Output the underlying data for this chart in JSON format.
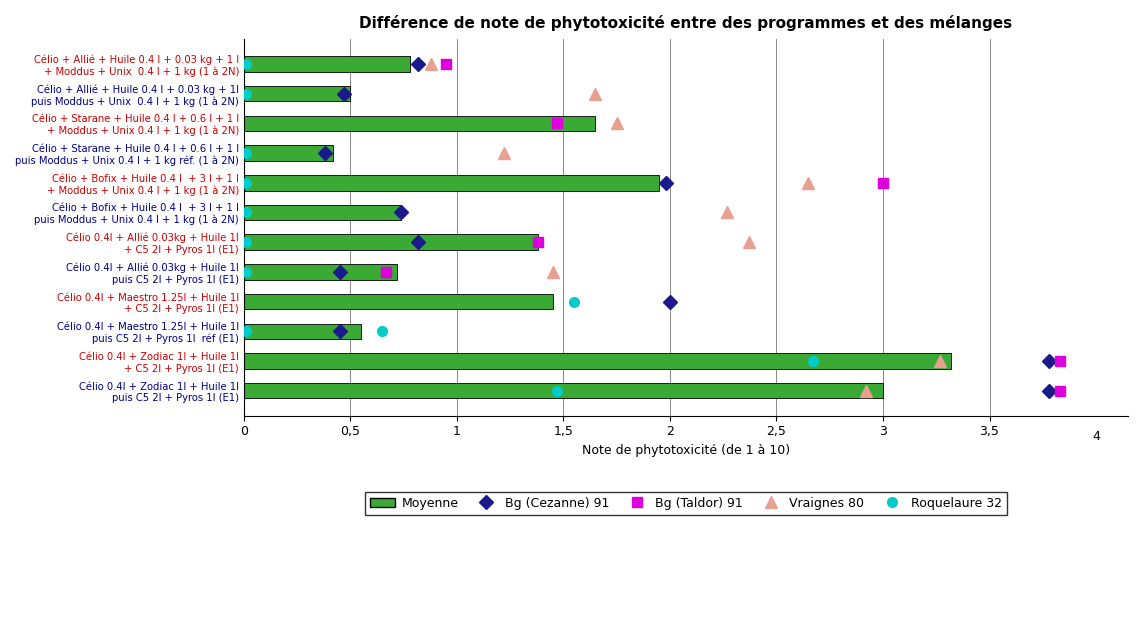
{
  "title": "Différence de note de phytotoxicité entre des programmes et des mélanges",
  "xlabel": "Note de phytotoxicité (de 1 à 10)",
  "bar_color": "#3aaa35",
  "bar_edge_color": "#000000",
  "background_color": "#ffffff",
  "xlim": [
    0,
    4.15
  ],
  "xticks": [
    0,
    0.5,
    1,
    1.5,
    2,
    2.5,
    3,
    3.5
  ],
  "xticklabels": [
    "0",
    "0,5",
    "1",
    "1,5",
    "2",
    "2,5",
    "3",
    "3,5"
  ],
  "categories": [
    [
      "Célio + Allié + Huile 0.4 l + 0.03 kg + 1 l",
      "+ Moddus + Unix  0.4 l + 1 kg (1 à 2N)"
    ],
    [
      "Célio + Allié + Huile 0.4 l + 0.03 kg + 1l",
      "puis Moddus + Unix  0.4 l + 1 kg (1 à 2N)"
    ],
    [
      "Célio + Starane + Huile 0.4 l + 0.6 l + 1 l",
      "+ Moddus + Unix 0.4 l + 1 kg (1 à 2N)"
    ],
    [
      "Célio + Starane + Huile 0.4 l + 0.6 l + 1 l",
      "puis Moddus + Unix 0.4 l + 1 kg réf. (1 à 2N)"
    ],
    [
      "Célio + Bofix + Huile 0.4 l  + 3 l + 1 l",
      "+ Moddus + Unix 0.4 l + 1 kg (1 à 2N)"
    ],
    [
      "Célio + Bofix + Huile 0.4 l  + 3 l + 1 l",
      "puis Moddus + Unix 0.4 l + 1 kg (1 à 2N)"
    ],
    [
      "Célio 0.4l + Allié 0.03kg + Huile 1l",
      "+ C5 2l + Pyros 1l (E1)"
    ],
    [
      "Célio 0.4l + Allié 0.03kg + Huile 1l",
      "puis C5 2l + Pyros 1l (E1)"
    ],
    [
      "Célio 0.4l + Maestro 1.25l + Huile 1l",
      "+ C5 2l + Pyros 1l (E1)"
    ],
    [
      "Célio 0.4l + Maestro 1.25l + Huile 1l",
      "puis C5 2l + Pyros 1l  réf (E1)"
    ],
    [
      "Célio 0.4l + Zodiac 1l + Huile 1l",
      "+ C5 2l + Pyros 1l (E1)"
    ],
    [
      "Célio 0.4l + Zodiac 1l + Huile 1l",
      "puis C5 2l + Pyros 1l (E1)"
    ]
  ],
  "cat_colors": [
    "#cc0000",
    "#00008b",
    "#cc0000",
    "#00008b",
    "#cc0000",
    "#00008b",
    "#cc0000",
    "#00008b",
    "#cc0000",
    "#00008b",
    "#cc0000",
    "#00008b"
  ],
  "bar_values": [
    0.78,
    0.5,
    1.65,
    0.42,
    1.95,
    0.74,
    1.38,
    0.72,
    1.45,
    0.55,
    3.32,
    3.0
  ],
  "bg_cezanne": [
    0.82,
    0.47,
    null,
    0.38,
    1.98,
    0.74,
    0.82,
    0.45,
    null,
    0.45,
    null,
    null
  ],
  "bg_taldor": [
    0.95,
    null,
    1.47,
    null,
    null,
    null,
    1.38,
    0.67,
    null,
    null,
    null,
    null
  ],
  "vraignes": [
    0.88,
    1.65,
    1.75,
    1.22,
    2.65,
    2.27,
    2.37,
    1.45,
    null,
    null,
    3.27,
    2.92
  ],
  "roquelaure": [
    null,
    null,
    null,
    null,
    null,
    null,
    null,
    null,
    1.55,
    0.65,
    2.67,
    1.47
  ],
  "marker_bg_cezanne_color": "#1a1a8c",
  "marker_bg_taldor_color": "#dd00dd",
  "marker_vraignes_color": "#e8a090",
  "marker_roquelaure_color": "#00cccc",
  "legend_labels": [
    "Moyenne",
    "Bg (Cezanne) 91",
    "Bg (Taldor) 91",
    "Vraignes 80",
    "Roquelaure 32"
  ],
  "cyan_at_bar_start": [
    true,
    true,
    false,
    true,
    true,
    true,
    true,
    true,
    false,
    true,
    false,
    false
  ],
  "vraignes_2nd": [
    null,
    null,
    null,
    null,
    null,
    null,
    null,
    null,
    null,
    null,
    null,
    null
  ],
  "bg_cezanne_2nd": [
    null,
    null,
    null,
    null,
    null,
    null,
    null,
    null,
    2.0,
    null,
    3.78,
    3.78
  ],
  "bg_taldor_2nd": [
    null,
    null,
    null,
    null,
    3.0,
    null,
    null,
    null,
    null,
    null,
    3.83,
    3.83
  ]
}
